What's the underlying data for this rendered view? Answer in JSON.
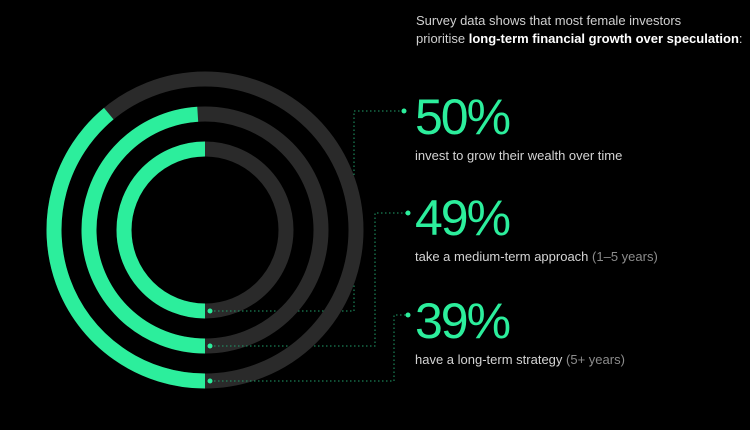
{
  "intro": {
    "line1": "Survey data shows that most female investors",
    "line2_prefix": "prioritise ",
    "line2_bold": "long-term financial growth over speculation",
    "line2_suffix": ":"
  },
  "chart_data": {
    "type": "radial-bar",
    "colors": {
      "fill": "#2cee9c",
      "track": "#2a2a2a",
      "connector": "#1f9e6a"
    },
    "series": [
      {
        "value": 50,
        "label": "50%",
        "description": "invest to grow their wealth over time",
        "note": ""
      },
      {
        "value": 49,
        "label": "49%",
        "description": "take a medium-term approach",
        "note": "(1–5 years)"
      },
      {
        "value": 39,
        "label": "39%",
        "description": "have a long-term strategy",
        "note": "(5+ years)"
      }
    ]
  }
}
